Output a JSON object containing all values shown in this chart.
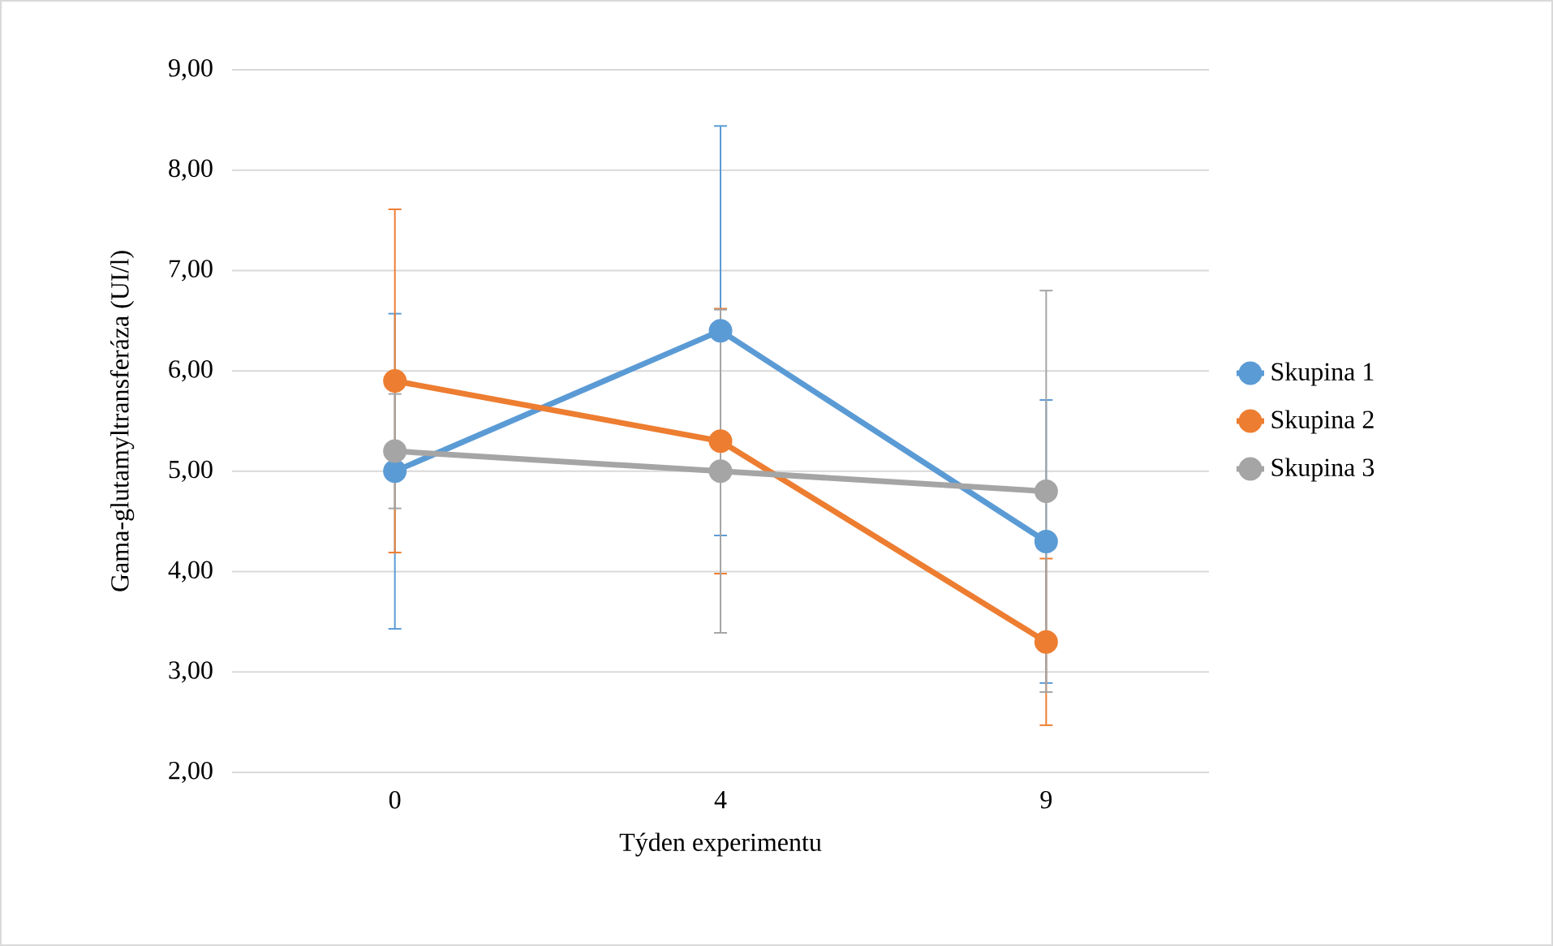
{
  "chart_data": {
    "type": "line",
    "xlabel": "Týden experimentu",
    "ylabel": "Gama-glutamyltransferáza  (UI/l)",
    "categories": [
      "0",
      "4",
      "9"
    ],
    "series": [
      {
        "name": "Skupina 1",
        "color": "#5b9bd5",
        "values": [
          5.0,
          6.4,
          4.3
        ],
        "errors": [
          1.57,
          2.04,
          1.41
        ]
      },
      {
        "name": "Skupina 2",
        "color": "#ed7d31",
        "values": [
          5.9,
          5.3,
          3.3
        ],
        "errors": [
          1.71,
          1.32,
          0.83
        ]
      },
      {
        "name": "Skupina 3",
        "color": "#a5a5a5",
        "values": [
          5.2,
          5.0,
          4.8
        ],
        "errors": [
          0.57,
          1.61,
          2.0
        ]
      }
    ],
    "ylim": [
      2,
      9
    ],
    "yticks": [
      {
        "value": 2,
        "label": "2,00"
      },
      {
        "value": 3,
        "label": "3,00"
      },
      {
        "value": 4,
        "label": "4,00"
      },
      {
        "value": 5,
        "label": "5,00"
      },
      {
        "value": 6,
        "label": "6,00"
      },
      {
        "value": 7,
        "label": "7,00"
      },
      {
        "value": 8,
        "label": "8,00"
      },
      {
        "value": 9,
        "label": "9,00"
      }
    ],
    "grid": "y",
    "legend": "right",
    "marker": "circle",
    "line_style": "solid"
  }
}
